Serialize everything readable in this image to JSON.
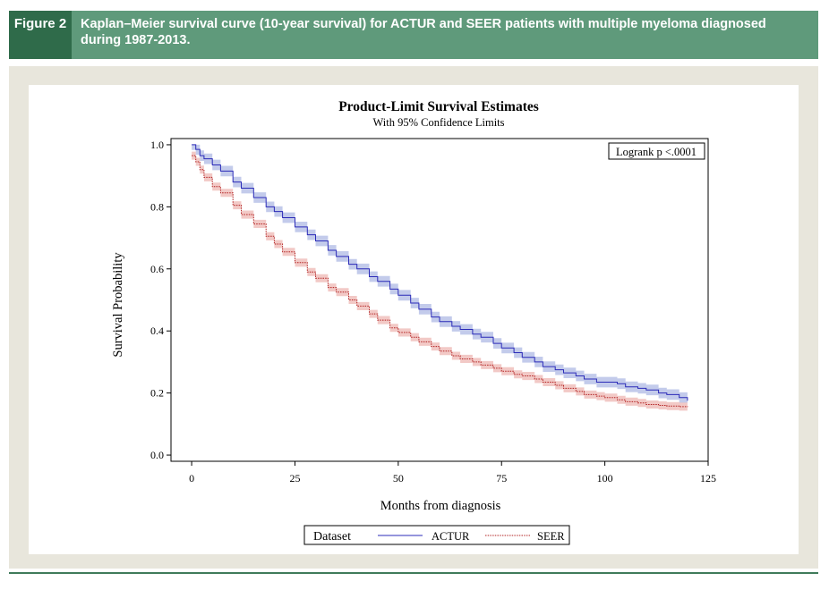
{
  "figure": {
    "label": "Figure 2",
    "caption": "Kaplan–Meier survival curve (10-year survival) for ACTUR and SEER patients with multiple myeloma diagnosed during 1987-2013."
  },
  "colors": {
    "header_bg": "#5f9a7b",
    "label_bg": "#2f6b4a",
    "panel_bg": "#e8e6dc",
    "actur_line": "#2b2bb8",
    "actur_band": "#b8c2e8",
    "seer_line": "#b22222",
    "seer_band": "#f0c0bc"
  },
  "chart_data": {
    "type": "line",
    "title": "Product-Limit Survival Estimates",
    "subtitle": "With 95% Confidence Limits",
    "xlabel": "Months from diagnosis",
    "ylabel": "Survival Probability",
    "xlim": [
      0,
      125
    ],
    "ylim": [
      0,
      1
    ],
    "x_ticks": [
      "0",
      "25",
      "50",
      "75",
      "100",
      "125"
    ],
    "y_ticks": [
      "0.0",
      "0.2",
      "0.4",
      "0.6",
      "0.8",
      "1.0"
    ],
    "annotation": "Logrank p <.0001",
    "legend": {
      "title": "Dataset",
      "position": "bottom"
    },
    "x": [
      0,
      1,
      2,
      3,
      5,
      7,
      10,
      12,
      15,
      18,
      20,
      22,
      25,
      28,
      30,
      33,
      35,
      38,
      40,
      43,
      45,
      48,
      50,
      53,
      55,
      58,
      60,
      63,
      65,
      68,
      70,
      73,
      75,
      78,
      80,
      83,
      85,
      88,
      90,
      93,
      95,
      98,
      100,
      103,
      105,
      108,
      110,
      113,
      115,
      118,
      120
    ],
    "series": [
      {
        "name": "ACTUR",
        "style": "solid",
        "values": [
          1.0,
          0.985,
          0.965,
          0.955,
          0.935,
          0.915,
          0.88,
          0.86,
          0.83,
          0.8,
          0.785,
          0.765,
          0.735,
          0.71,
          0.69,
          0.66,
          0.64,
          0.615,
          0.6,
          0.575,
          0.56,
          0.535,
          0.515,
          0.49,
          0.47,
          0.445,
          0.43,
          0.415,
          0.405,
          0.39,
          0.38,
          0.36,
          0.345,
          0.33,
          0.315,
          0.3,
          0.285,
          0.275,
          0.265,
          0.255,
          0.245,
          0.235,
          0.235,
          0.23,
          0.22,
          0.215,
          0.21,
          0.2,
          0.195,
          0.185,
          0.175
        ],
        "ci_halfwidth": 0.017
      },
      {
        "name": "SEER",
        "style": "dashed",
        "values": [
          0.965,
          0.945,
          0.92,
          0.895,
          0.865,
          0.845,
          0.805,
          0.775,
          0.745,
          0.705,
          0.68,
          0.655,
          0.62,
          0.59,
          0.57,
          0.54,
          0.525,
          0.5,
          0.48,
          0.455,
          0.435,
          0.41,
          0.395,
          0.38,
          0.365,
          0.35,
          0.335,
          0.32,
          0.31,
          0.3,
          0.29,
          0.28,
          0.27,
          0.26,
          0.255,
          0.245,
          0.235,
          0.225,
          0.215,
          0.205,
          0.195,
          0.19,
          0.185,
          0.178,
          0.172,
          0.168,
          0.163,
          0.16,
          0.158,
          0.156,
          0.155
        ],
        "ci_halfwidth": 0.013
      }
    ]
  }
}
